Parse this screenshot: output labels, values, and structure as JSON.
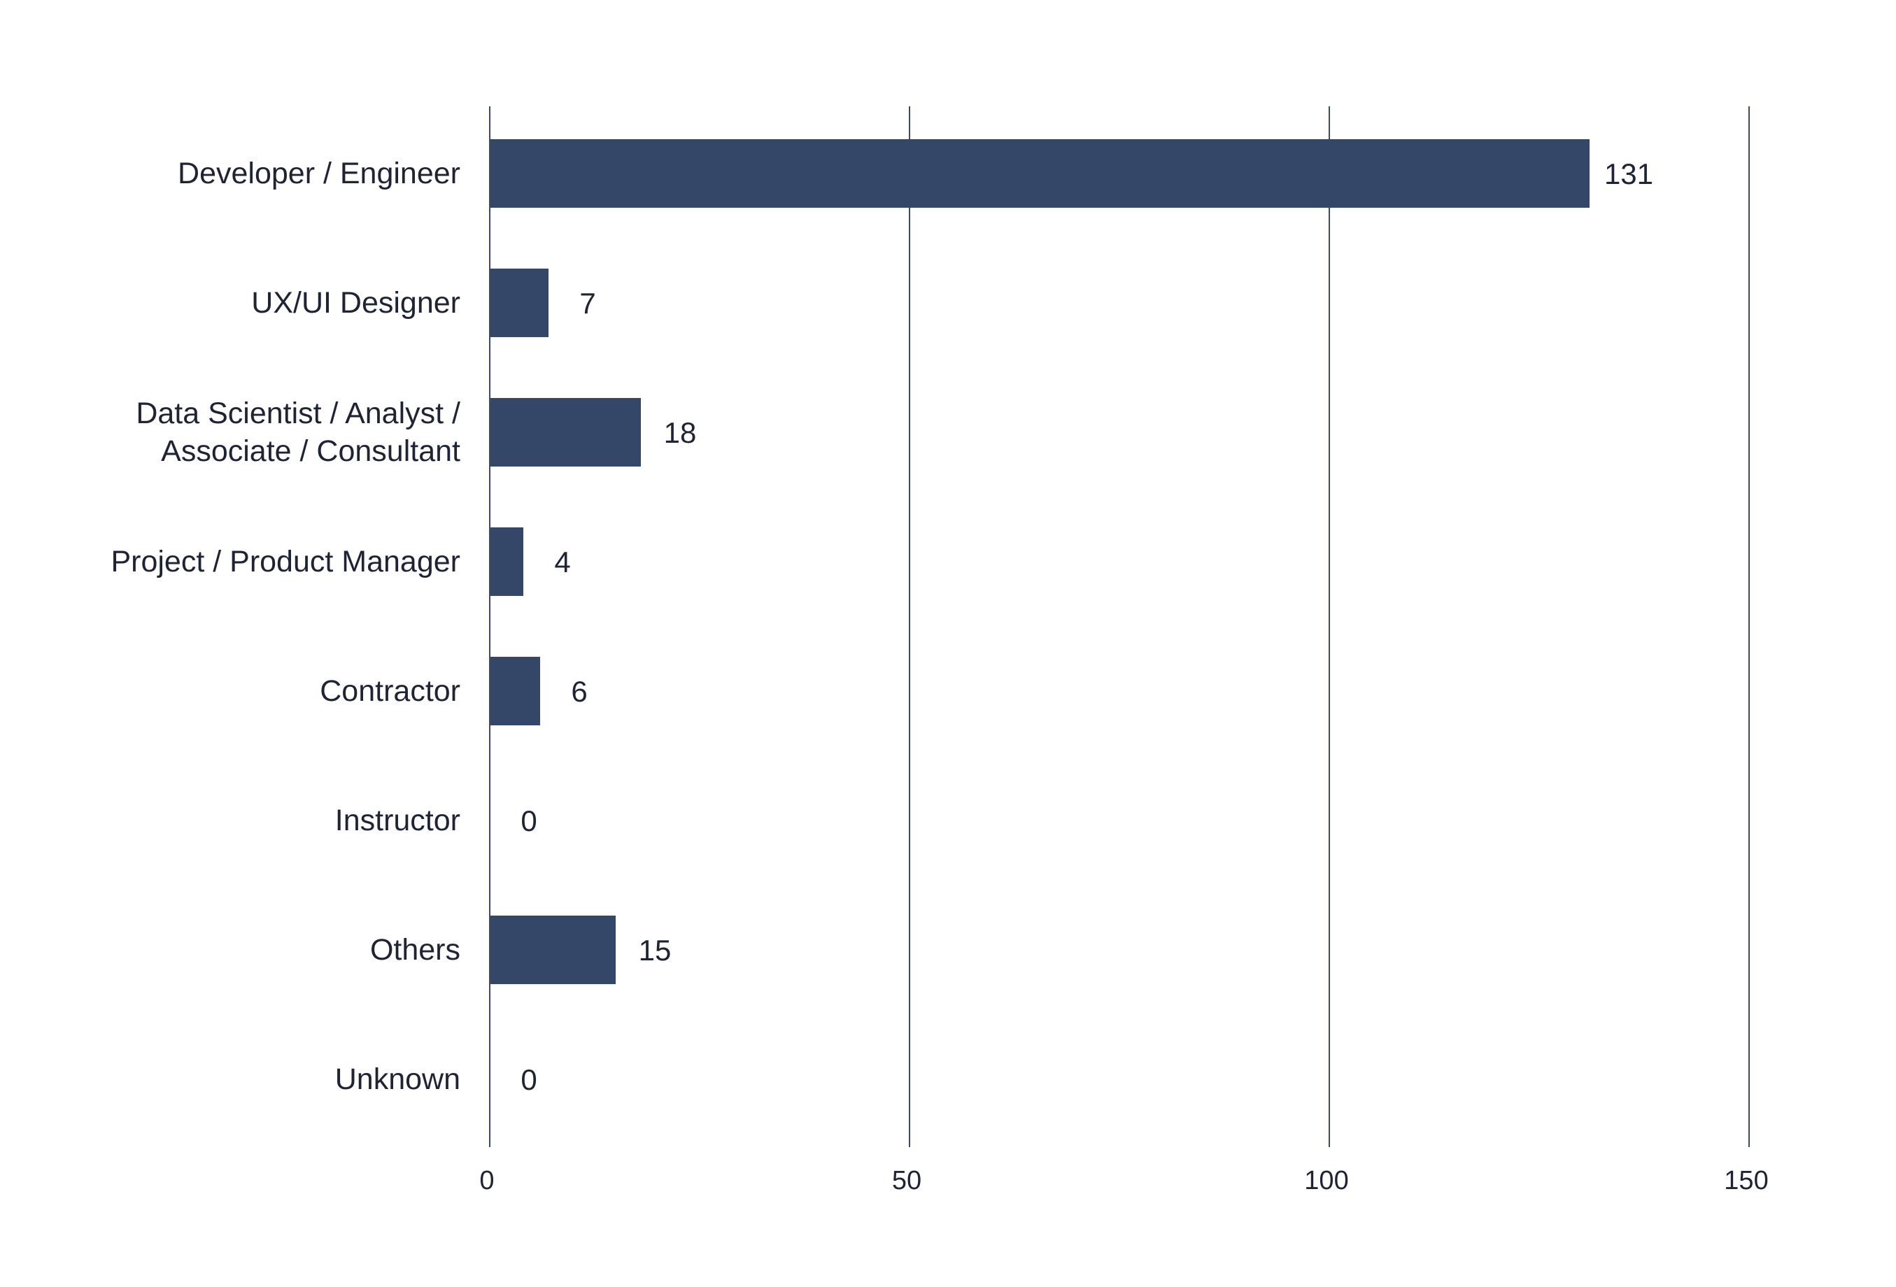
{
  "chart_data": {
    "type": "bar",
    "orientation": "horizontal",
    "categories": [
      [
        "Developer / Engineer"
      ],
      [
        "UX/UI Designer"
      ],
      [
        "Data Scientist / Analyst /",
        "Associate / Consultant"
      ],
      [
        "Project / Product Manager"
      ],
      [
        "Contractor"
      ],
      [
        "Instructor"
      ],
      [
        "Others"
      ],
      [
        "Unknown"
      ]
    ],
    "values": [
      131,
      7,
      18,
      4,
      6,
      0,
      15,
      0
    ],
    "value_labels": [
      "131",
      "7",
      "18",
      "4",
      "6",
      "0",
      "15",
      "0"
    ],
    "xlim": [
      0,
      150
    ],
    "xticks": [
      0,
      50,
      100,
      150
    ],
    "xtick_labels": [
      "0",
      "50",
      "100",
      "150"
    ],
    "grid": "vertical",
    "legend": "none"
  },
  "colors": {
    "bar": "#344769",
    "grid": "#3d4b6b",
    "text": "#1e2433",
    "background": "#ffffff"
  }
}
